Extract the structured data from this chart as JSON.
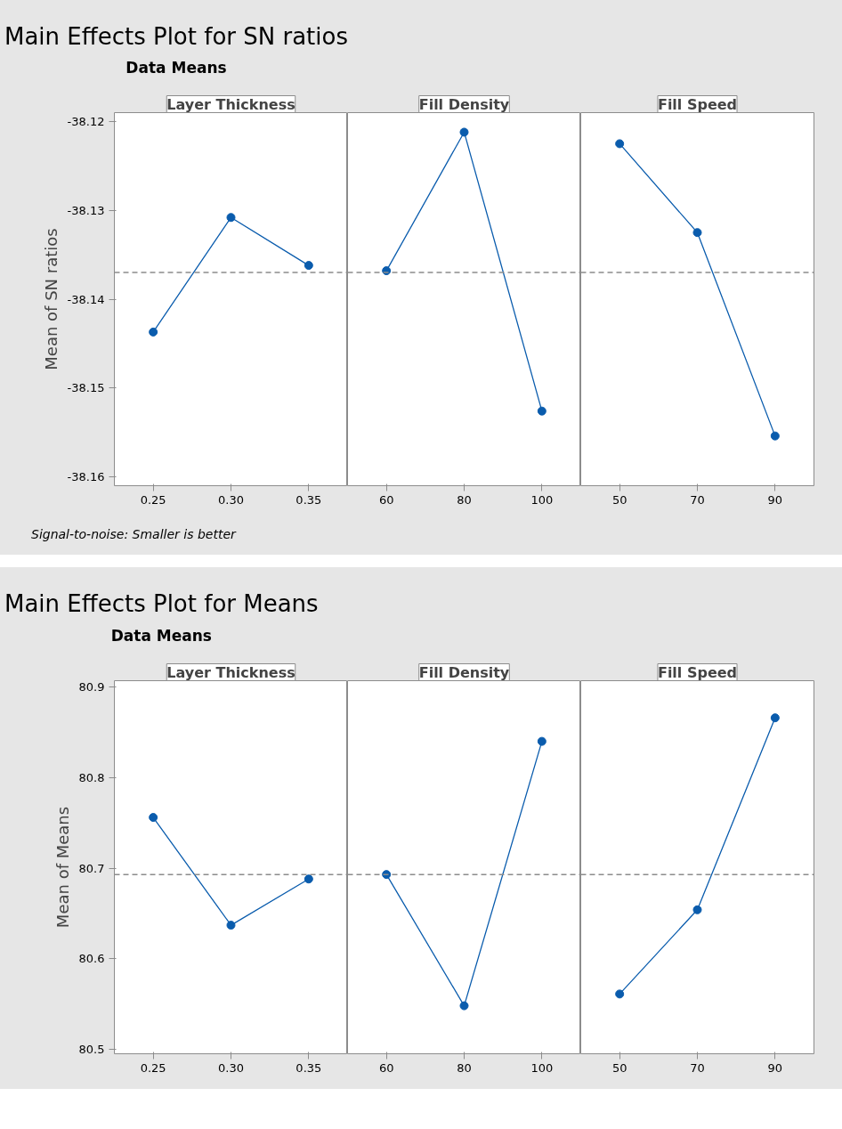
{
  "chart_data": [
    {
      "type": "line",
      "title": "Main Effects Plot for SN ratios",
      "subtitle": "Data Means",
      "xlabel": "Layer Thickness",
      "ylabel": "Mean of SN ratios",
      "categories": [
        "0.25",
        "0.30",
        "0.35"
      ],
      "values": [
        -38.1437,
        -38.1308,
        -38.1362
      ],
      "color": "#0a5cad",
      "marker": "circle",
      "ylim": [
        -38.161,
        -38.119
      ],
      "yticks": [
        -38.16,
        -38.15,
        -38.14,
        -38.13,
        -38.12
      ],
      "ref_lines": [
        {
          "axis": "y",
          "value": -38.137,
          "line_style": "dashed",
          "color": "#8c8c8c"
        }
      ],
      "annotations": [
        "Signal-to-noise: Smaller is better"
      ]
    },
    {
      "type": "line",
      "xlabel": "Fill Density",
      "categories": [
        "60",
        "80",
        "100"
      ],
      "values": [
        -38.1368,
        -38.1212,
        -38.1526
      ],
      "color": "#0a5cad",
      "marker": "circle",
      "ylim": [
        -38.161,
        -38.119
      ],
      "tick_labels": "x",
      "ref_lines": [
        {
          "axis": "y",
          "value": -38.137,
          "line_style": "dashed",
          "color": "#8c8c8c"
        }
      ]
    },
    {
      "type": "line",
      "xlabel": "Fill Speed",
      "categories": [
        "50",
        "70",
        "90"
      ],
      "values": [
        -38.1225,
        -38.1325,
        -38.1554
      ],
      "color": "#0a5cad",
      "marker": "circle",
      "ylim": [
        -38.161,
        -38.119
      ],
      "tick_labels": "x",
      "ref_lines": [
        {
          "axis": "y",
          "value": -38.137,
          "line_style": "dashed",
          "color": "#8c8c8c"
        }
      ]
    },
    {
      "type": "line",
      "title": "Main Effects Plot for Means",
      "subtitle": "Data Means",
      "xlabel": "Layer Thickness",
      "ylabel": "Mean of Means",
      "categories": [
        "0.25",
        "0.30",
        "0.35"
      ],
      "values": [
        80.756,
        80.637,
        80.688
      ],
      "color": "#0a5cad",
      "marker": "circle",
      "ylim": [
        80.495,
        80.907
      ],
      "yticks": [
        80.5,
        80.6,
        80.7,
        80.8,
        80.9
      ],
      "ref_lines": [
        {
          "axis": "y",
          "value": 80.693,
          "line_style": "dashed",
          "color": "#8c8c8c"
        }
      ]
    },
    {
      "type": "line",
      "xlabel": "Fill Density",
      "categories": [
        "60",
        "80",
        "100"
      ],
      "values": [
        80.693,
        80.548,
        80.84
      ],
      "color": "#0a5cad",
      "marker": "circle",
      "ylim": [
        80.495,
        80.907
      ],
      "tick_labels": "x",
      "ref_lines": [
        {
          "axis": "y",
          "value": 80.693,
          "line_style": "dashed",
          "color": "#8c8c8c"
        }
      ]
    },
    {
      "type": "line",
      "xlabel": "Fill Speed",
      "categories": [
        "50",
        "70",
        "90"
      ],
      "values": [
        80.561,
        80.654,
        80.866
      ],
      "color": "#0a5cad",
      "marker": "circle",
      "ylim": [
        80.495,
        80.907
      ],
      "tick_labels": "x",
      "ref_lines": [
        {
          "axis": "y",
          "value": 80.693,
          "line_style": "dashed",
          "color": "#8c8c8c"
        }
      ]
    }
  ]
}
